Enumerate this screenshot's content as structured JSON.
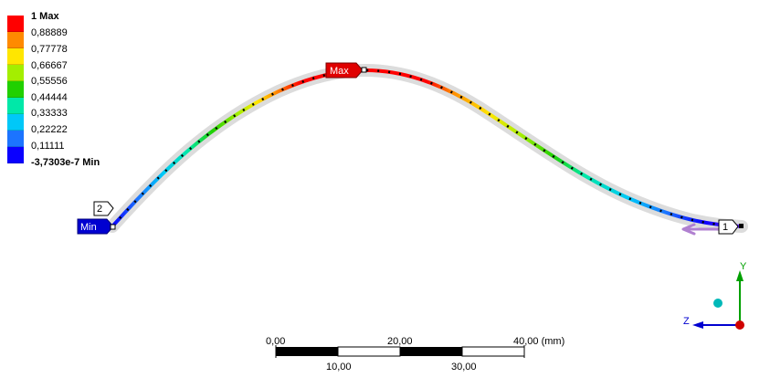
{
  "legend": {
    "colors": [
      "#ff0000",
      "#ff8a00",
      "#ffe600",
      "#a4ee00",
      "#21d000",
      "#00e8a8",
      "#00c8f8",
      "#1c74ff",
      "#0a00ff"
    ],
    "labels": [
      {
        "text": "1 Max",
        "bold": true
      },
      {
        "text": "0,88889",
        "bold": false
      },
      {
        "text": "0,77778",
        "bold": false
      },
      {
        "text": "0,66667",
        "bold": false
      },
      {
        "text": "0,55556",
        "bold": false
      },
      {
        "text": "0,44444",
        "bold": false
      },
      {
        "text": "0,33333",
        "bold": false
      },
      {
        "text": "0,22222",
        "bold": false
      },
      {
        "text": "0,11111",
        "bold": false
      },
      {
        "text": "-3,7303e-7 Min",
        "bold": true
      }
    ]
  },
  "probes": {
    "max_label": "Max",
    "min_label": "Min",
    "node_1": "1",
    "node_2": "2",
    "max_color": "#e00000",
    "min_color": "#0000d0"
  },
  "scale": {
    "top_labels": [
      "0,00",
      "20,00",
      "40,00 (mm)"
    ],
    "bottom_labels": [
      "10,00",
      "30,00"
    ]
  },
  "triad": {
    "y_label": "Y",
    "z_label": "Z",
    "y_color": "#00a000",
    "z_color": "#0000d0",
    "x_color": "#d00000",
    "iso_ball_color": "#00b8b8"
  }
}
